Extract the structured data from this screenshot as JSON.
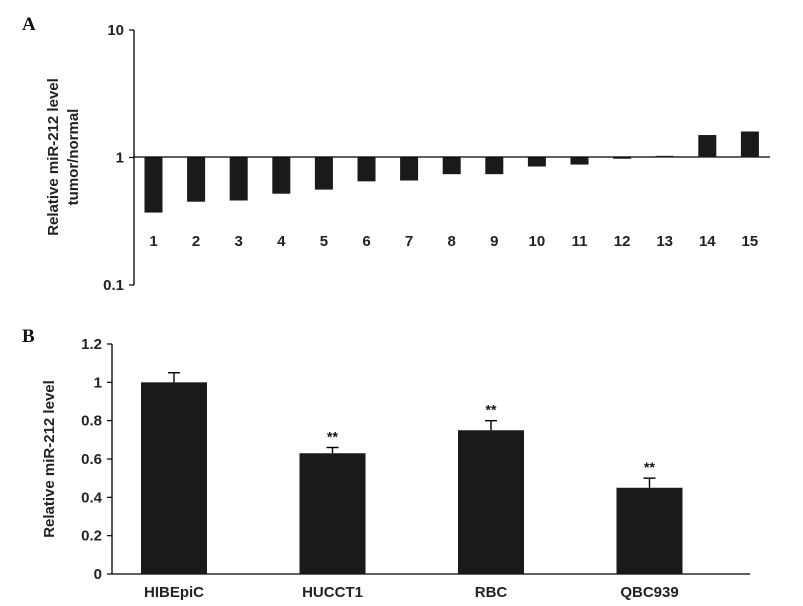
{
  "chart_data": [
    {
      "panel": "A",
      "type": "bar",
      "yscale": "log",
      "ylim": [
        0.1,
        10
      ],
      "yticks": [
        "10",
        "1",
        "0.1"
      ],
      "ylabel": [
        "Relative miR-212 level",
        "tumor/normal"
      ],
      "categories": [
        "1",
        "2",
        "3",
        "4",
        "5",
        "6",
        "7",
        "8",
        "9",
        "10",
        "11",
        "12",
        "13",
        "14",
        "15"
      ],
      "values": [
        0.37,
        0.45,
        0.46,
        0.52,
        0.56,
        0.65,
        0.66,
        0.74,
        0.74,
        0.85,
        0.88,
        0.99,
        1.03,
        1.5,
        1.6
      ],
      "grid": false
    },
    {
      "panel": "B",
      "type": "bar",
      "ylim": [
        0,
        1.2
      ],
      "yticks": [
        "1.2",
        "1",
        "0.8",
        "0.6",
        "0.4",
        "0.2",
        "0"
      ],
      "ylabel": "Relative miR-212 level",
      "categories": [
        "HIBEpiC",
        "HUCCT1",
        "RBC",
        "QBC939"
      ],
      "values": [
        1.0,
        0.63,
        0.75,
        0.45
      ],
      "errors": [
        0.05,
        0.03,
        0.05,
        0.05
      ],
      "annotations": [
        "",
        "**",
        "**",
        "**"
      ],
      "grid": false
    }
  ]
}
